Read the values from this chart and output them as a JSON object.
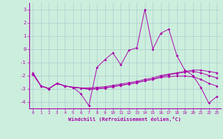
{
  "x": [
    0,
    1,
    2,
    3,
    4,
    5,
    6,
    7,
    8,
    9,
    10,
    11,
    12,
    13,
    14,
    15,
    16,
    17,
    18,
    19,
    20,
    21,
    22,
    23
  ],
  "line1": [
    -1.8,
    -2.8,
    -3.0,
    -2.6,
    -2.8,
    -2.9,
    -3.4,
    -4.3,
    -1.4,
    -0.8,
    -0.3,
    -1.2,
    -0.1,
    0.1,
    3.0,
    0.0,
    1.2,
    1.5,
    -0.5,
    -1.6,
    -2.0,
    -2.9,
    -4.1,
    -3.6
  ],
  "line2": [
    -1.9,
    -2.8,
    -3.0,
    -2.6,
    -2.8,
    -2.9,
    -2.95,
    -2.95,
    -2.9,
    -2.85,
    -2.75,
    -2.65,
    -2.55,
    -2.45,
    -2.3,
    -2.2,
    -2.0,
    -1.9,
    -1.8,
    -1.7,
    -1.6,
    -1.6,
    -1.7,
    -1.8
  ],
  "line3": [
    -1.9,
    -2.8,
    -3.0,
    -2.6,
    -2.8,
    -2.9,
    -2.95,
    -3.05,
    -3.0,
    -2.95,
    -2.85,
    -2.75,
    -2.65,
    -2.55,
    -2.4,
    -2.3,
    -2.15,
    -2.1,
    -2.05,
    -2.05,
    -2.1,
    -2.3,
    -2.6,
    -2.8
  ],
  "line4": [
    -1.9,
    -2.8,
    -3.0,
    -2.6,
    -2.8,
    -2.9,
    -2.95,
    -3.05,
    -3.0,
    -2.95,
    -2.85,
    -2.75,
    -2.65,
    -2.55,
    -2.4,
    -2.3,
    -2.1,
    -1.95,
    -1.85,
    -1.75,
    -1.7,
    -1.8,
    -2.0,
    -2.2
  ],
  "background_color": "#cceedd",
  "line_color": "#aa00aa",
  "grid_color": "#aacccc",
  "xlabel": "Windchill (Refroidissement éolien,°C)",
  "ylim": [
    -4.5,
    3.5
  ],
  "xlim": [
    -0.5,
    23.5
  ],
  "yticks": [
    -4,
    -3,
    -2,
    -1,
    0,
    1,
    2,
    3
  ],
  "xticks": [
    0,
    1,
    2,
    3,
    4,
    5,
    6,
    7,
    8,
    9,
    10,
    11,
    12,
    13,
    14,
    15,
    16,
    17,
    18,
    19,
    20,
    21,
    22,
    23
  ]
}
